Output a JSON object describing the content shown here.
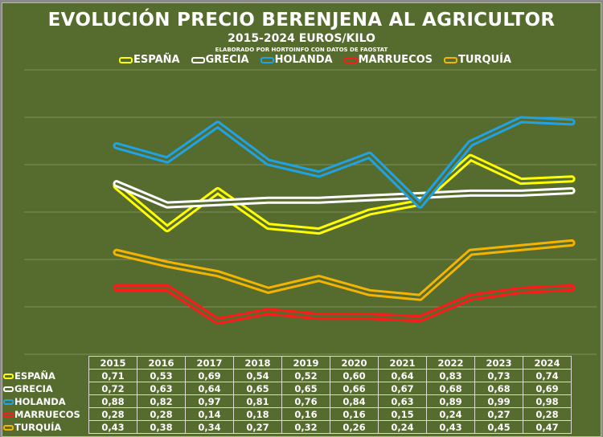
{
  "title": "EVOLUCIÓN PRECIO BERENJENA AL AGRICULTOR",
  "subtitle": "2015-2024 EUROS/KILO",
  "source": "ELABORADO POR HORTOINFO CON DATOS DE  FAOSTAT",
  "chart_data": {
    "type": "line",
    "title": "EVOLUCIÓN PRECIO BERENJENA AL AGRICULTOR",
    "subtitle": "2015-2024 EUROS/KILO",
    "x": [
      "2015",
      "2016",
      "2017",
      "2018",
      "2019",
      "2020",
      "2021",
      "2022",
      "2023",
      "2024"
    ],
    "ylim": [
      0,
      1.2
    ],
    "grid": true,
    "legend": "top",
    "series": [
      {
        "name": "ESPAÑA",
        "color": "#ffff00",
        "values": [
          "0,71",
          "0,53",
          "0,69",
          "0,54",
          "0,52",
          "0,60",
          "0,64",
          "0,83",
          "0,73",
          "0,74"
        ]
      },
      {
        "name": "GRECIA",
        "color": "#ffffff",
        "values": [
          "0,72",
          "0,63",
          "0,64",
          "0,65",
          "0,65",
          "0,66",
          "0,67",
          "0,68",
          "0,68",
          "0,69"
        ]
      },
      {
        "name": "HOLANDA",
        "color": "#1fa3e6",
        "values": [
          "0,88",
          "0,82",
          "0,97",
          "0,81",
          "0,76",
          "0,84",
          "0,63",
          "0,89",
          "0,99",
          "0,98"
        ]
      },
      {
        "name": "MARRUECOS",
        "color": "#ff1a1a",
        "values": [
          "0,28",
          "0,28",
          "0,14",
          "0,18",
          "0,16",
          "0,16",
          "0,15",
          "0,24",
          "0,27",
          "0,28"
        ]
      },
      {
        "name": "TURQUÍA",
        "color": "#f5b400",
        "values": [
          "0,43",
          "0,38",
          "0,34",
          "0,27",
          "0,32",
          "0,26",
          "0,24",
          "0,43",
          "0,45",
          "0,47"
        ]
      }
    ]
  }
}
